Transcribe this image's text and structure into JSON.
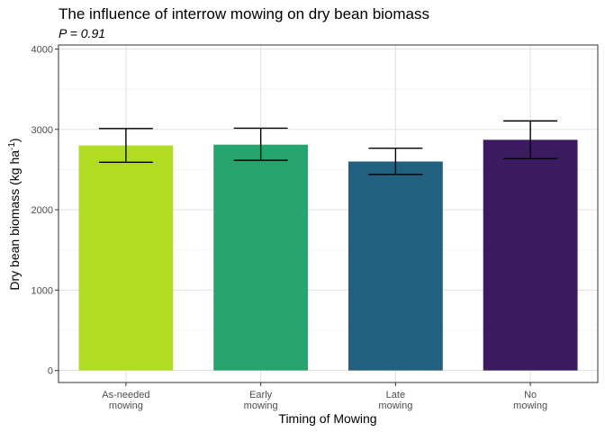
{
  "chart_data": {
    "type": "bar",
    "title": "The influence of interrow mowing on dry bean biomass",
    "subtitle": "P = 0.91",
    "xlabel": "Timing of Mowing",
    "ylabel_prefix": "Dry bean biomass (kg ha",
    "ylabel_sup": "-1",
    "ylabel_suffix": ")",
    "categories": [
      [
        "As-needed",
        "mowing"
      ],
      [
        "Early",
        "mowing"
      ],
      [
        "Late",
        "mowing"
      ],
      [
        "No",
        "mowing"
      ]
    ],
    "values": [
      2800,
      2810,
      2600,
      2870
    ],
    "error_low": [
      2590,
      2615,
      2440,
      2635
    ],
    "error_high": [
      3010,
      3015,
      2765,
      3105
    ],
    "colors": [
      "#b0dd22",
      "#26a66e",
      "#226080",
      "#3b1a61"
    ],
    "ylim": [
      -150,
      4050
    ],
    "yticks": [
      0,
      1000,
      2000,
      3000,
      4000
    ],
    "grid": true,
    "legend": "none"
  }
}
